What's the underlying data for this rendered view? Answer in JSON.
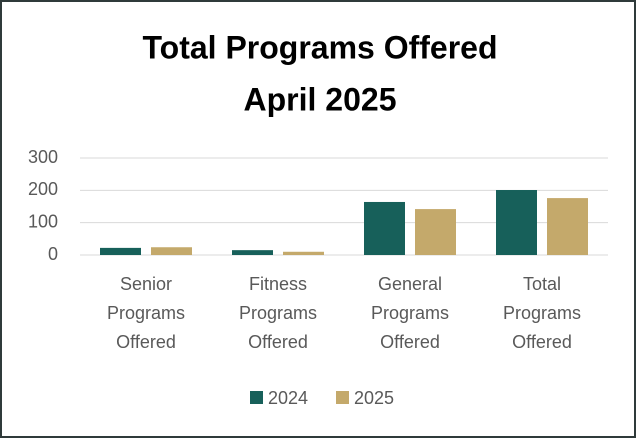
{
  "chart_data": {
    "type": "bar",
    "title": "Total Programs Offered",
    "subtitle": "April 2025",
    "categories": [
      "Senior Programs Offered",
      "Fitness Programs Offered",
      "General Programs Offered",
      "Total Programs Offered"
    ],
    "series": [
      {
        "name": "2024",
        "color": "#17605a",
        "values": [
          22,
          15,
          164,
          201
        ]
      },
      {
        "name": "2025",
        "color": "#c4a96b",
        "values": [
          24,
          10,
          142,
          176
        ]
      }
    ],
    "ylim": [
      0,
      300
    ],
    "yticks": [
      0,
      100,
      200,
      300
    ],
    "grid": true,
    "legend": "bottom"
  }
}
